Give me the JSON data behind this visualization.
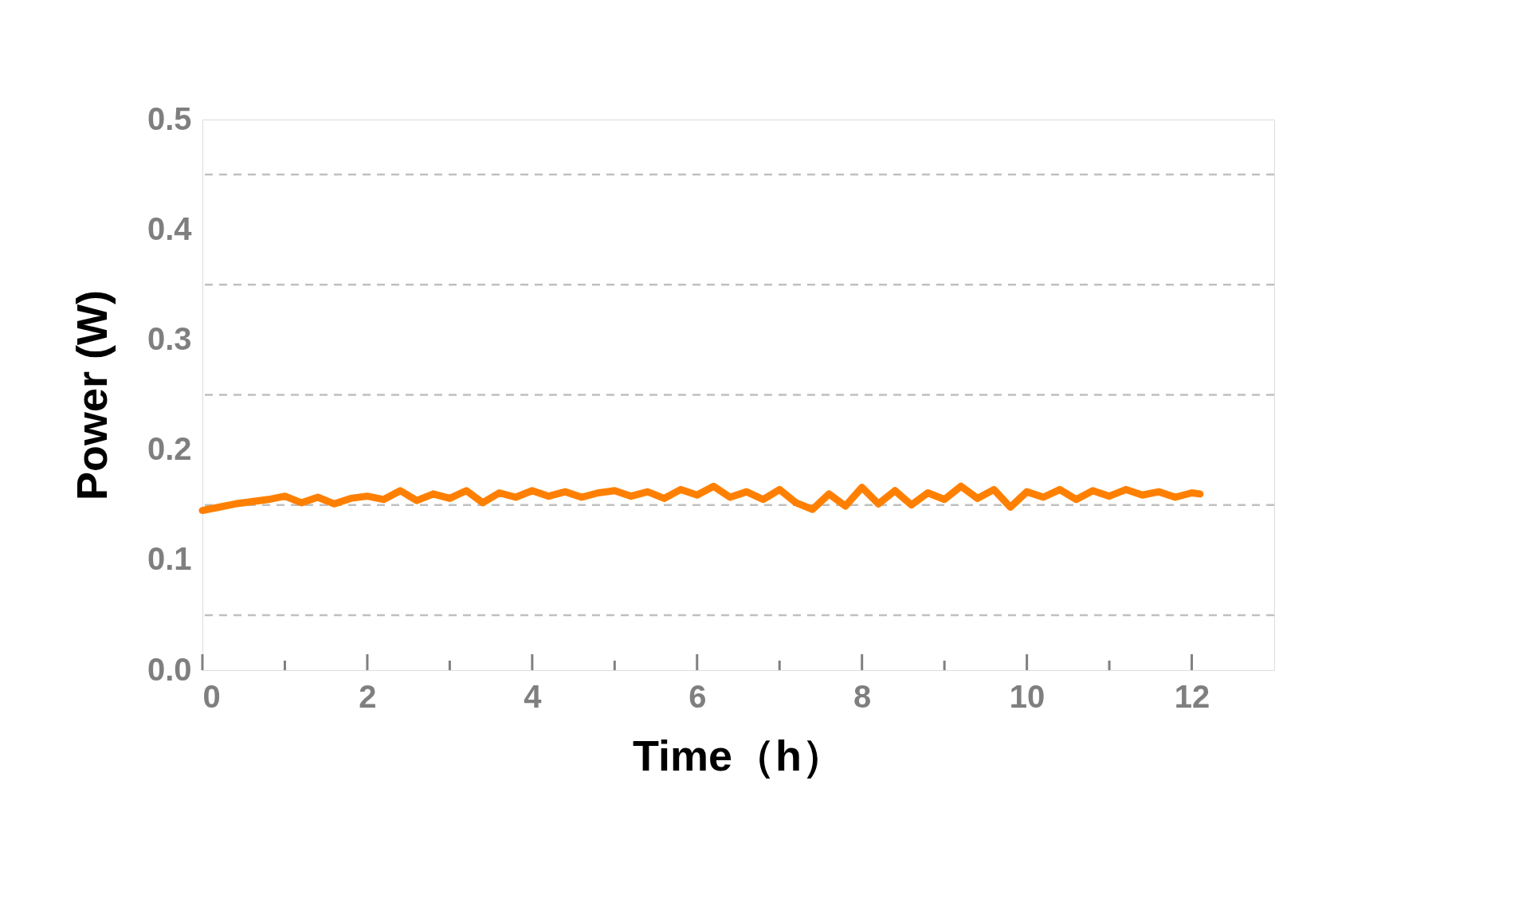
{
  "chart_data": {
    "type": "line",
    "xlabel": "Time（h）",
    "ylabel": "Power (W)",
    "x": [
      0,
      0.2,
      0.4,
      0.6,
      0.8,
      1.0,
      1.2,
      1.4,
      1.6,
      1.8,
      2.0,
      2.2,
      2.4,
      2.6,
      2.8,
      3.0,
      3.2,
      3.4,
      3.6,
      3.8,
      4.0,
      4.2,
      4.4,
      4.6,
      4.8,
      5.0,
      5.2,
      5.4,
      5.6,
      5.8,
      6.0,
      6.2,
      6.4,
      6.6,
      6.8,
      7.0,
      7.2,
      7.4,
      7.6,
      7.8,
      8.0,
      8.2,
      8.4,
      8.6,
      8.8,
      9.0,
      9.2,
      9.4,
      9.6,
      9.8,
      10.0,
      10.2,
      10.4,
      10.6,
      10.8,
      11.0,
      11.2,
      11.4,
      11.6,
      11.8,
      12.0,
      12.1
    ],
    "series": [
      {
        "color": "#ff8000",
        "values": [
          0.145,
          0.148,
          0.151,
          0.153,
          0.155,
          0.158,
          0.152,
          0.157,
          0.151,
          0.156,
          0.158,
          0.155,
          0.163,
          0.154,
          0.16,
          0.156,
          0.163,
          0.152,
          0.161,
          0.157,
          0.163,
          0.158,
          0.162,
          0.157,
          0.161,
          0.163,
          0.158,
          0.162,
          0.156,
          0.164,
          0.159,
          0.167,
          0.157,
          0.162,
          0.155,
          0.164,
          0.152,
          0.146,
          0.16,
          0.149,
          0.166,
          0.151,
          0.163,
          0.15,
          0.161,
          0.155,
          0.167,
          0.156,
          0.164,
          0.148,
          0.162,
          0.157,
          0.164,
          0.155,
          0.163,
          0.158,
          0.164,
          0.159,
          0.162,
          0.157,
          0.161,
          0.16
        ]
      }
    ],
    "xlim": [
      0,
      13
    ],
    "xticks": [
      0,
      {
        "value": 1,
        "label": null
      },
      2,
      {
        "value": 3,
        "label": null
      },
      4,
      {
        "value": 5,
        "label": null
      },
      6,
      {
        "value": 7,
        "label": null
      },
      8,
      {
        "value": 9,
        "label": null
      },
      10,
      {
        "value": 11,
        "label": null
      },
      12
    ],
    "ylim": [
      0,
      0.5
    ],
    "yticks": [
      {
        "value": 0,
        "label": "0.0"
      },
      0.1,
      0.2,
      0.3,
      0.4,
      0.5
    ],
    "ref_lines": [
      {
        "axis": "y",
        "value": 0.05,
        "color": "#c0c0c0",
        "line_style": "dashed"
      },
      {
        "axis": "y",
        "value": 0.15,
        "color": "#c0c0c0",
        "line_style": "dashed"
      },
      {
        "axis": "y",
        "value": 0.25,
        "color": "#c0c0c0",
        "line_style": "dashed"
      },
      {
        "axis": "y",
        "value": 0.35,
        "color": "#c0c0c0",
        "line_style": "dashed"
      },
      {
        "axis": "y",
        "value": 0.45,
        "color": "#c0c0c0",
        "line_style": "dashed"
      }
    ],
    "line_style": "solid"
  }
}
